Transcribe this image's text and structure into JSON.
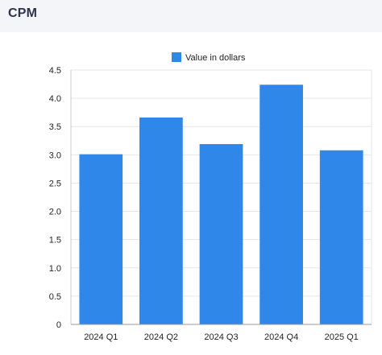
{
  "page": {
    "title": "CPM"
  },
  "chart_data": {
    "type": "bar",
    "categories": [
      "2024 Q1",
      "2024 Q2",
      "2024 Q3",
      "2024 Q4",
      "2025 Q1"
    ],
    "series": [
      {
        "name": "Value in dollars",
        "values": [
          3.01,
          3.66,
          3.19,
          4.24,
          3.08
        ],
        "color": "#2f87ea"
      }
    ],
    "ylim": [
      0,
      4.5
    ],
    "yticks": [
      "0",
      "0.5",
      "1.0",
      "1.5",
      "2.0",
      "2.5",
      "3.0",
      "3.5",
      "4.0",
      "4.5"
    ],
    "grid": true,
    "legend_position": "top-center",
    "title": "",
    "xlabel": "",
    "ylabel": ""
  }
}
